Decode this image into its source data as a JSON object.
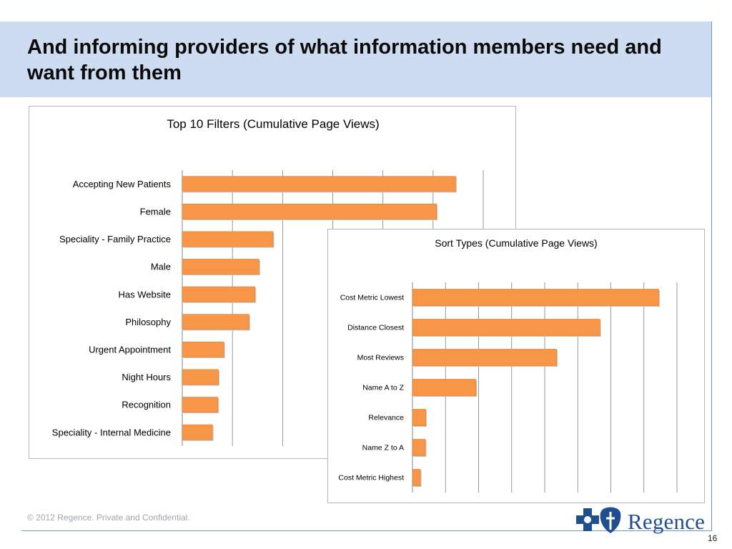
{
  "slide": {
    "title": "And informing providers of what information members need and want from them",
    "footer": "© 2012 Regence.  Private and Confidential.",
    "page_number": "16",
    "logo_text": "Regence",
    "colors": {
      "bar": "#f79646",
      "title_band": "#cddcf0",
      "rule": "#6d94c9",
      "logo": "#1f4f8f"
    }
  },
  "chart_data": [
    {
      "type": "bar",
      "orientation": "horizontal",
      "title": "Top 10 Filters (Cumulative Page Views)",
      "categories": [
        "Accepting New Patients",
        "Female",
        "Speciality - Family Practice",
        "Male",
        "Has Website",
        "Philosophy",
        "Urgent Appointment",
        "Night Hours",
        "Recognition",
        "Speciality - Internal Medicine"
      ],
      "values": [
        5.45,
        5.07,
        1.81,
        1.53,
        1.45,
        1.33,
        0.83,
        0.72,
        0.71,
        0.6
      ],
      "xlim": [
        0,
        6
      ],
      "grid": true,
      "color": "#f79646"
    },
    {
      "type": "bar",
      "orientation": "horizontal",
      "title": "Sort Types (Cumulative Page Views)",
      "categories": [
        "Cost Metric Lowest",
        "Distance Closest",
        "Most Reviews",
        "Name A to Z",
        "Relevance",
        "Name Z to A",
        "Cost Metric Highest"
      ],
      "values": [
        7.45,
        5.67,
        4.36,
        1.92,
        0.4,
        0.39,
        0.24
      ],
      "xlim": [
        0,
        8
      ],
      "grid": true,
      "color": "#f79646"
    }
  ]
}
